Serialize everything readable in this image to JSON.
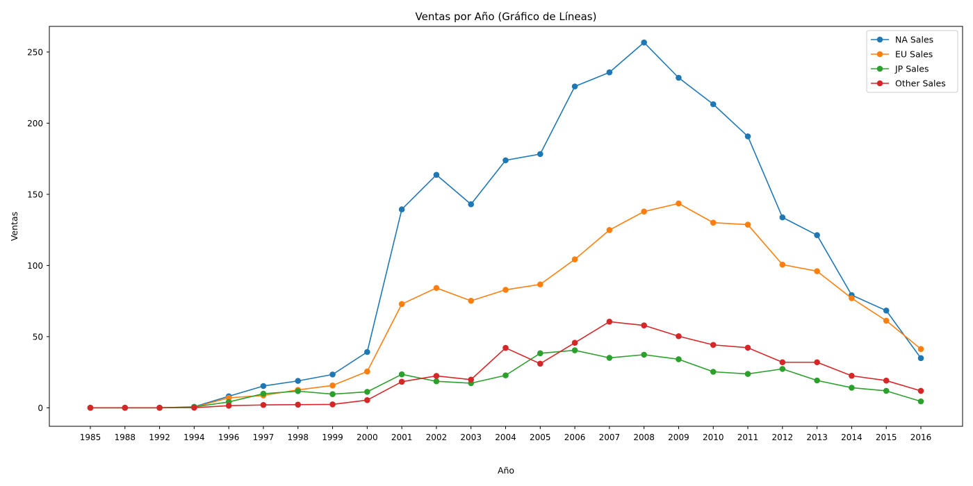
{
  "chart_data": {
    "type": "line",
    "title": "Ventas por Año (Gráfico de Líneas)",
    "xlabel": "Año",
    "ylabel": "Ventas",
    "categories": [
      "1985",
      "1988",
      "1992",
      "1994",
      "1996",
      "1997",
      "1998",
      "1999",
      "2000",
      "2001",
      "2002",
      "2003",
      "2004",
      "2005",
      "2006",
      "2007",
      "2008",
      "2009",
      "2010",
      "2011",
      "2012",
      "2013",
      "2014",
      "2015",
      "2016"
    ],
    "ylim": [
      -13,
      268
    ],
    "yticks": [
      0,
      50,
      100,
      150,
      200,
      250
    ],
    "grid": false,
    "legend_position": "top-right",
    "series": [
      {
        "name": "NA Sales",
        "color": "#1f77b4",
        "values": [
          0.0,
          0.0,
          0.0,
          0.7,
          8.1,
          15.3,
          18.9,
          23.4,
          39.2,
          139.4,
          163.7,
          143.0,
          173.9,
          178.3,
          225.8,
          235.7,
          256.7,
          231.9,
          213.3,
          190.7,
          133.8,
          121.3,
          79.2,
          68.3,
          34.9
        ]
      },
      {
        "name": "EU Sales",
        "color": "#ff7f0e",
        "values": [
          0.0,
          0.0,
          0.0,
          0.4,
          7.0,
          8.7,
          12.6,
          15.7,
          25.5,
          72.9,
          84.2,
          75.2,
          82.9,
          86.7,
          104.3,
          124.9,
          137.9,
          143.6,
          130.1,
          128.7,
          100.6,
          96.0,
          77.0,
          61.2,
          41.3
        ]
      },
      {
        "name": "JP Sales",
        "color": "#2ca02c",
        "values": [
          0.0,
          0.0,
          0.0,
          0.6,
          4.1,
          9.9,
          11.7,
          9.6,
          11.2,
          23.5,
          18.6,
          17.3,
          22.8,
          38.3,
          40.4,
          35.1,
          37.3,
          34.1,
          25.3,
          23.8,
          27.3,
          19.2,
          14.1,
          11.9,
          4.5
        ]
      },
      {
        "name": "Other Sales",
        "color": "#d62728",
        "values": [
          0.0,
          0.0,
          0.0,
          0.1,
          1.5,
          2.0,
          2.2,
          2.4,
          5.4,
          18.3,
          22.4,
          19.8,
          42.1,
          31.0,
          45.7,
          60.5,
          57.9,
          50.3,
          44.2,
          42.2,
          32.0,
          32.0,
          22.5,
          19.1,
          11.9
        ]
      }
    ]
  }
}
